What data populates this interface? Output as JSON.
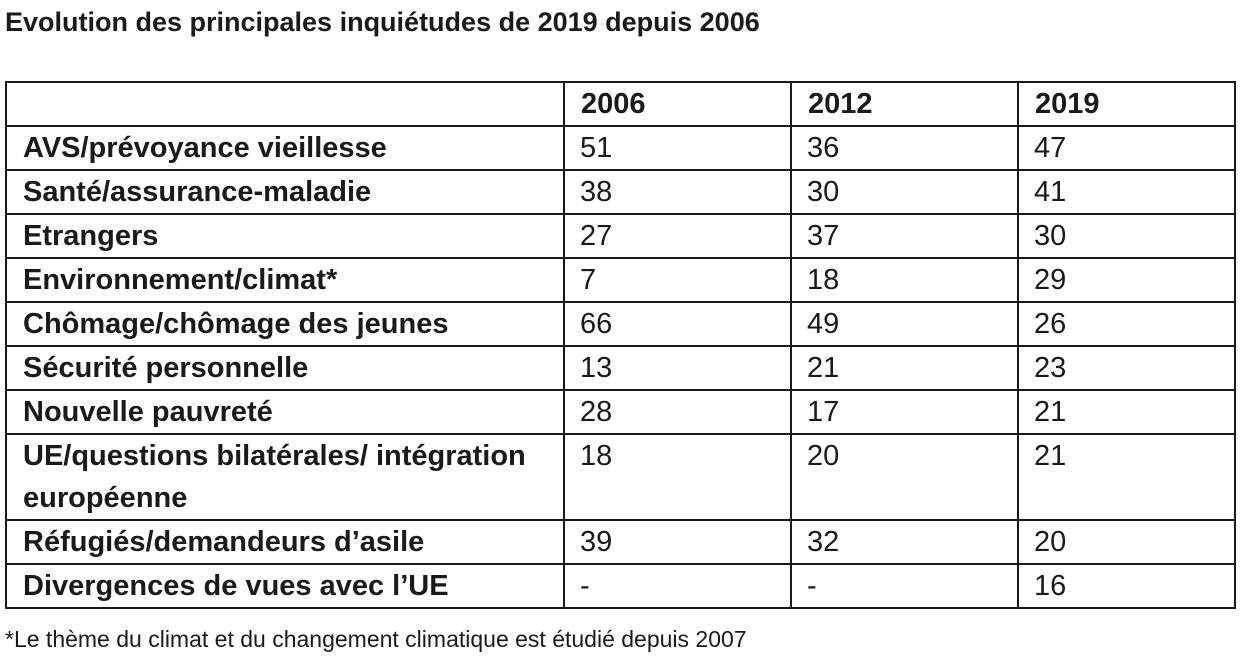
{
  "title": "Evolution des principales inquiétudes de 2019 depuis 2006",
  "table": {
    "header": [
      "",
      "2006",
      "2012",
      "2019"
    ],
    "rows": [
      {
        "label": "AVS/prévoyance vieillesse",
        "values": [
          "51",
          "36",
          "47"
        ]
      },
      {
        "label": "Santé/assurance-maladie",
        "values": [
          "38",
          "30",
          "41"
        ]
      },
      {
        "label": "Etrangers",
        "values": [
          "27",
          "37",
          "30"
        ]
      },
      {
        "label": "Environnement/climat*",
        "values": [
          "7",
          "18",
          "29"
        ]
      },
      {
        "label": "Chômage/chômage des jeunes",
        "values": [
          "66",
          "49",
          "26"
        ]
      },
      {
        "label": "Sécurité personnelle",
        "values": [
          "13",
          "21",
          "23"
        ]
      },
      {
        "label": "Nouvelle pauvreté",
        "values": [
          "28",
          "17",
          "21"
        ]
      },
      {
        "label": "UE/questions bilatérales/ intégration européenne",
        "values": [
          "18",
          "20",
          "21"
        ]
      },
      {
        "label": "Réfugiés/demandeurs d’asile",
        "values": [
          "39",
          "32",
          "20"
        ]
      },
      {
        "label": "Divergences de vues avec l’UE",
        "values": [
          "-",
          "-",
          "16"
        ]
      }
    ]
  },
  "footnote": "*Le thème du climat et du changement climatique est étudié depuis 2007"
}
